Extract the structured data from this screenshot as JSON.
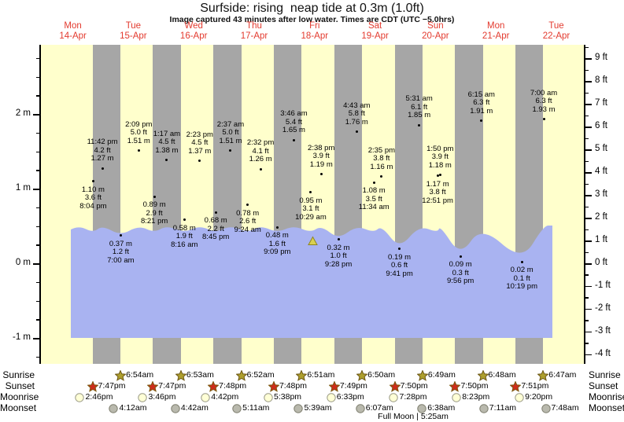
{
  "title": "Surfside: rising  neap tide at 0.3m (1.0ft)",
  "subtitle": "Image captured 43 minutes after low water. Times are CDT (UTC −5.0hrs)",
  "days": [
    {
      "name": "Mon",
      "date": "14-Apr"
    },
    {
      "name": "Tue",
      "date": "15-Apr"
    },
    {
      "name": "Wed",
      "date": "16-Apr"
    },
    {
      "name": "Thu",
      "date": "17-Apr"
    },
    {
      "name": "Fri",
      "date": "18-Apr"
    },
    {
      "name": "Sat",
      "date": "19-Apr"
    },
    {
      "name": "Sun",
      "date": "20-Apr"
    },
    {
      "name": "Mon",
      "date": "21-Apr"
    },
    {
      "name": "Tue",
      "date": "22-Apr"
    }
  ],
  "chart_data": {
    "type": "area",
    "title": "Surfside: rising  neap tide at 0.3m (1.0ft)",
    "x_range": "Mon 14-Apr to Tue 22-Apr",
    "y_left": {
      "unit": "m",
      "tick_labels": [
        "2 m",
        "1 m",
        "0 m",
        "-1 m"
      ],
      "major_ticks": [
        2,
        1,
        0,
        -1
      ],
      "minor_step": 0.25
    },
    "y_right": {
      "unit": "ft",
      "major_ticks": [
        9,
        8,
        7,
        6,
        5,
        4,
        3,
        2,
        1,
        0,
        -1,
        -2,
        -3,
        -4
      ],
      "minor_step": 0.5
    },
    "current_tide_note": "rising neap tide at 0.3m (1.0ft)",
    "tide_events": [
      {
        "day": 0,
        "type": "low",
        "time": "8:04 pm",
        "height_m": 1.1,
        "height_ft": 3.6
      },
      {
        "day": 0,
        "type": "high",
        "time": "11:42 pm",
        "height_m": 1.27,
        "height_ft": 4.2
      },
      {
        "day": 1,
        "type": "low",
        "time": "7:00 am",
        "height_m": 0.37,
        "height_ft": 1.2
      },
      {
        "day": 1,
        "type": "high",
        "time": "2:09 pm",
        "height_m": 1.51,
        "height_ft": 5.0
      },
      {
        "day": 1,
        "type": "low",
        "time": "8:21 pm",
        "height_m": 0.89,
        "height_ft": 2.9
      },
      {
        "day": 2,
        "type": "high",
        "time": "1:17 am",
        "height_m": 1.38,
        "height_ft": 4.5
      },
      {
        "day": 2,
        "type": "low",
        "time": "8:16 am",
        "height_m": 0.58,
        "height_ft": 1.9
      },
      {
        "day": 2,
        "type": "high",
        "time": "2:23 pm",
        "height_m": 1.37,
        "height_ft": 4.5
      },
      {
        "day": 2,
        "type": "low",
        "time": "8:45 pm",
        "height_m": 0.68,
        "height_ft": 2.2
      },
      {
        "day": 3,
        "type": "high",
        "time": "2:37 am",
        "height_m": 1.51,
        "height_ft": 5.0
      },
      {
        "day": 3,
        "type": "low",
        "time": "9:24 am",
        "height_m": 0.78,
        "height_ft": 2.6
      },
      {
        "day": 3,
        "type": "high",
        "time": "2:32 pm",
        "height_m": 1.26,
        "height_ft": 4.1
      },
      {
        "day": 3,
        "type": "low",
        "time": "9:09 pm",
        "height_m": 0.48,
        "height_ft": 1.6
      },
      {
        "day": 4,
        "type": "high",
        "time": "3:46 am",
        "height_m": 1.65,
        "height_ft": 5.4
      },
      {
        "day": 4,
        "type": "low",
        "time": "10:29 am",
        "height_m": 0.95,
        "height_ft": 3.1
      },
      {
        "day": 4,
        "type": "high",
        "time": "2:38 pm",
        "height_m": 1.19,
        "height_ft": 3.9
      },
      {
        "day": 4,
        "type": "low",
        "time": "9:28 pm",
        "height_m": 0.32,
        "height_ft": 1.0
      },
      {
        "day": 5,
        "type": "high",
        "time": "4:43 am",
        "height_m": 1.76,
        "height_ft": 5.8
      },
      {
        "day": 5,
        "type": "low",
        "time": "11:34 am",
        "height_m": 1.08,
        "height_ft": 3.5
      },
      {
        "day": 5,
        "type": "high",
        "time": "2:35 pm",
        "height_m": 1.16,
        "height_ft": 3.8
      },
      {
        "day": 5,
        "type": "low",
        "time": "9:41 pm",
        "height_m": 0.19,
        "height_ft": 0.6
      },
      {
        "day": 6,
        "type": "high",
        "time": "5:31 am",
        "height_m": 1.85,
        "height_ft": 6.1
      },
      {
        "day": 6,
        "type": "low",
        "time": "12:51 pm",
        "height_m": 1.17,
        "height_ft": 3.8
      },
      {
        "day": 6,
        "type": "high",
        "time": "1:50 pm",
        "height_m": 1.18,
        "height_ft": 3.9
      },
      {
        "day": 6,
        "type": "low",
        "time": "9:56 pm",
        "height_m": 0.09,
        "height_ft": 0.3
      },
      {
        "day": 7,
        "type": "high",
        "time": "6:15 am",
        "height_m": 1.91,
        "height_ft": 6.3
      },
      {
        "day": 7,
        "type": "low",
        "time": "10:19 pm",
        "height_m": 0.02,
        "height_ft": 0.1
      },
      {
        "day": 8,
        "type": "high",
        "time": "7:00 am",
        "height_m": 1.93,
        "height_ft": 6.3
      }
    ]
  },
  "astro": {
    "rows": [
      {
        "label": "Sunrise",
        "icon": "sunrise-star-icon",
        "entries": [
          {
            "day": 1,
            "time": "6:54am"
          },
          {
            "day": 2,
            "time": "6:53am"
          },
          {
            "day": 3,
            "time": "6:52am"
          },
          {
            "day": 4,
            "time": "6:51am"
          },
          {
            "day": 5,
            "time": "6:50am"
          },
          {
            "day": 6,
            "time": "6:49am"
          },
          {
            "day": 7,
            "time": "6:48am"
          },
          {
            "day": 8,
            "time": "6:47am"
          }
        ]
      },
      {
        "label": "Sunset",
        "icon": "sunset-star-icon",
        "entries": [
          {
            "day": 0,
            "time": "7:47pm"
          },
          {
            "day": 1,
            "time": "7:47pm"
          },
          {
            "day": 2,
            "time": "7:48pm"
          },
          {
            "day": 3,
            "time": "7:48pm"
          },
          {
            "day": 4,
            "time": "7:49pm"
          },
          {
            "day": 5,
            "time": "7:50pm"
          },
          {
            "day": 6,
            "time": "7:50pm"
          },
          {
            "day": 7,
            "time": "7:51pm"
          }
        ]
      },
      {
        "label": "Moonrise",
        "icon": "moonrise-icon",
        "entries": [
          {
            "day": 0,
            "time": "2:46pm"
          },
          {
            "day": 1,
            "time": "3:46pm"
          },
          {
            "day": 2,
            "time": "4:42pm"
          },
          {
            "day": 3,
            "time": "5:38pm"
          },
          {
            "day": 4,
            "time": "6:33pm"
          },
          {
            "day": 5,
            "time": "7:28pm"
          },
          {
            "day": 6,
            "time": "8:23pm"
          },
          {
            "day": 7,
            "time": "9:20pm"
          }
        ]
      },
      {
        "label": "Moonset",
        "icon": "moonset-icon",
        "entries": [
          {
            "day": 1,
            "time": "4:12am"
          },
          {
            "day": 2,
            "time": "4:42am"
          },
          {
            "day": 3,
            "time": "5:11am"
          },
          {
            "day": 4,
            "time": "5:39am"
          },
          {
            "day": 5,
            "time": "6:07am"
          },
          {
            "day": 6,
            "time": "6:38am"
          },
          {
            "day": 7,
            "time": "7:11am"
          },
          {
            "day": 8,
            "time": "7:48am"
          }
        ]
      }
    ],
    "full_moon": "Full Moon | 5:25am"
  },
  "colors": {
    "background": "#ffffff",
    "plot_day": "#ffffcc",
    "plot_night": "#a6a6a6",
    "water": "#a9b3f1",
    "day_label": "#e33a2e",
    "marker_fill": "#d9d050",
    "marker_stroke": "#8f851f",
    "sunrise_star": "#ad9f2d",
    "sunrise_star_stroke": "#6c5716",
    "sunset_star": "#cd2d1b",
    "sunset_star_stroke": "#7a5a10",
    "moonrise_fill": "#ffffd6",
    "moonrise_stroke": "#9a9a86",
    "moonset_fill": "#b9b9ad",
    "moonset_stroke": "#7f7f70"
  }
}
